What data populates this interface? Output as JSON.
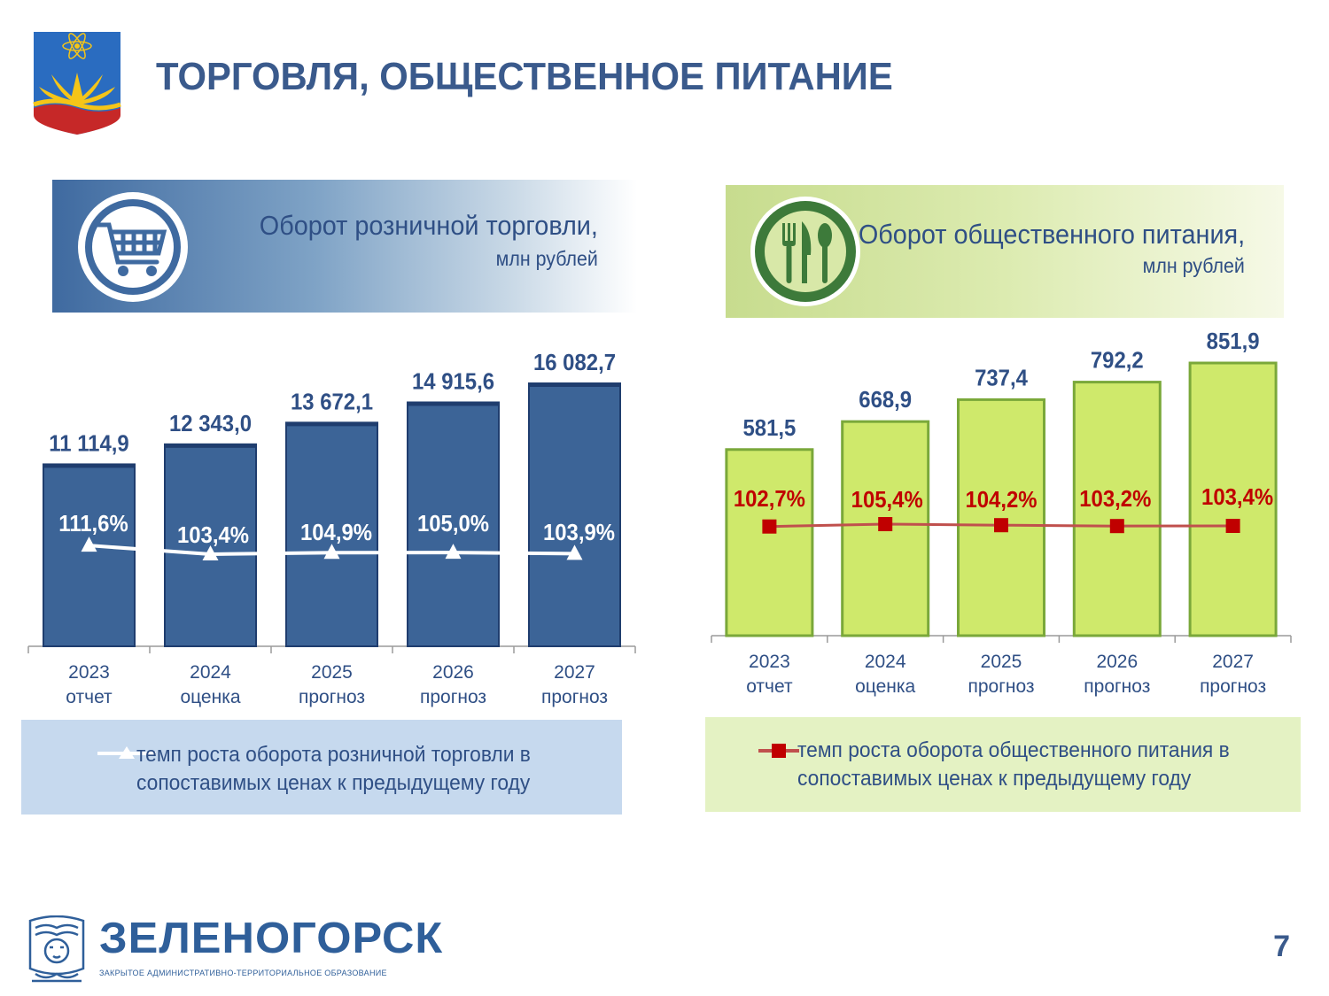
{
  "page_title": "ТОРГОВЛЯ, ОБЩЕСТВЕННОЕ ПИТАНИЕ",
  "page_number": "7",
  "brand": {
    "name": "ЗЕЛЕНОГОРСК",
    "subtitle": "ЗАКРЫТОЕ АДМИНИСТРАТИВНО-ТЕРРИТОРИАЛЬНОЕ ОБРАЗОВАНИЕ"
  },
  "retail_panel": {
    "title": "Оборот розничной торговли,",
    "unit": "млн рублей",
    "icon": "shopping-cart-icon",
    "legend_line1": "темп роста оборота розничной торговли в",
    "legend_line2": "сопоставимых ценах к предыдущему году"
  },
  "food_panel": {
    "title": "Оборот общественного питания,",
    "unit": "млн рублей",
    "icon": "fork-knife-spoon-icon",
    "legend_line1": "темп роста оборота общественного питания в",
    "legend_line2": "сопоставимых ценах к предыдущему году"
  },
  "chart_data": [
    {
      "type": "bar",
      "categories": [
        [
          "2023",
          "отчет"
        ],
        [
          "2024",
          "оценка"
        ],
        [
          "2025",
          "прогноз"
        ],
        [
          "2026",
          "прогноз"
        ],
        [
          "2027",
          "прогноз"
        ]
      ],
      "values": [
        11114.9,
        12343.0,
        13672.1,
        14915.6,
        16082.7
      ],
      "value_labels": [
        "11 114,9",
        "12 343,0",
        "13 672,1",
        "14 915,6",
        "16 082,7"
      ],
      "line_series": {
        "name": "темп роста оборота розничной торговли в сопоставимых ценах к предыдущему году",
        "values": [
          111.6,
          103.4,
          104.9,
          105.0,
          103.9
        ],
        "labels": [
          "111,6%",
          "103,4%",
          "104,9%",
          "105,0%",
          "103,9%"
        ],
        "marker": "triangle"
      },
      "colors": {
        "bar": "#3c6497",
        "bar_edge": "#1f3d6e",
        "line": "#ffffff",
        "value_text": "#2f4f85",
        "line_label": "#ffffff"
      }
    },
    {
      "type": "bar",
      "categories": [
        [
          "2023",
          "отчет"
        ],
        [
          "2024",
          "оценка"
        ],
        [
          "2025",
          "прогноз"
        ],
        [
          "2026",
          "прогноз"
        ],
        [
          "2027",
          "прогноз"
        ]
      ],
      "values": [
        581.5,
        668.9,
        737.4,
        792.2,
        851.9
      ],
      "value_labels": [
        "581,5",
        "668,9",
        "737,4",
        "792,2",
        "851,9"
      ],
      "line_series": {
        "name": "темп роста оборота общественного питания в сопоставимых ценах к предыдущему году",
        "values": [
          102.7,
          105.4,
          104.2,
          103.2,
          103.4
        ],
        "labels": [
          "102,7%",
          "105,4%",
          "104,2%",
          "103,2%",
          "103,4%"
        ],
        "marker": "square"
      },
      "colors": {
        "bar": "#cfe96b",
        "bar_edge": "#7aa83a",
        "line": "#c0504d",
        "marker": "#c00000",
        "value_text": "#2f4f85",
        "line_label": "#c00000"
      }
    }
  ]
}
